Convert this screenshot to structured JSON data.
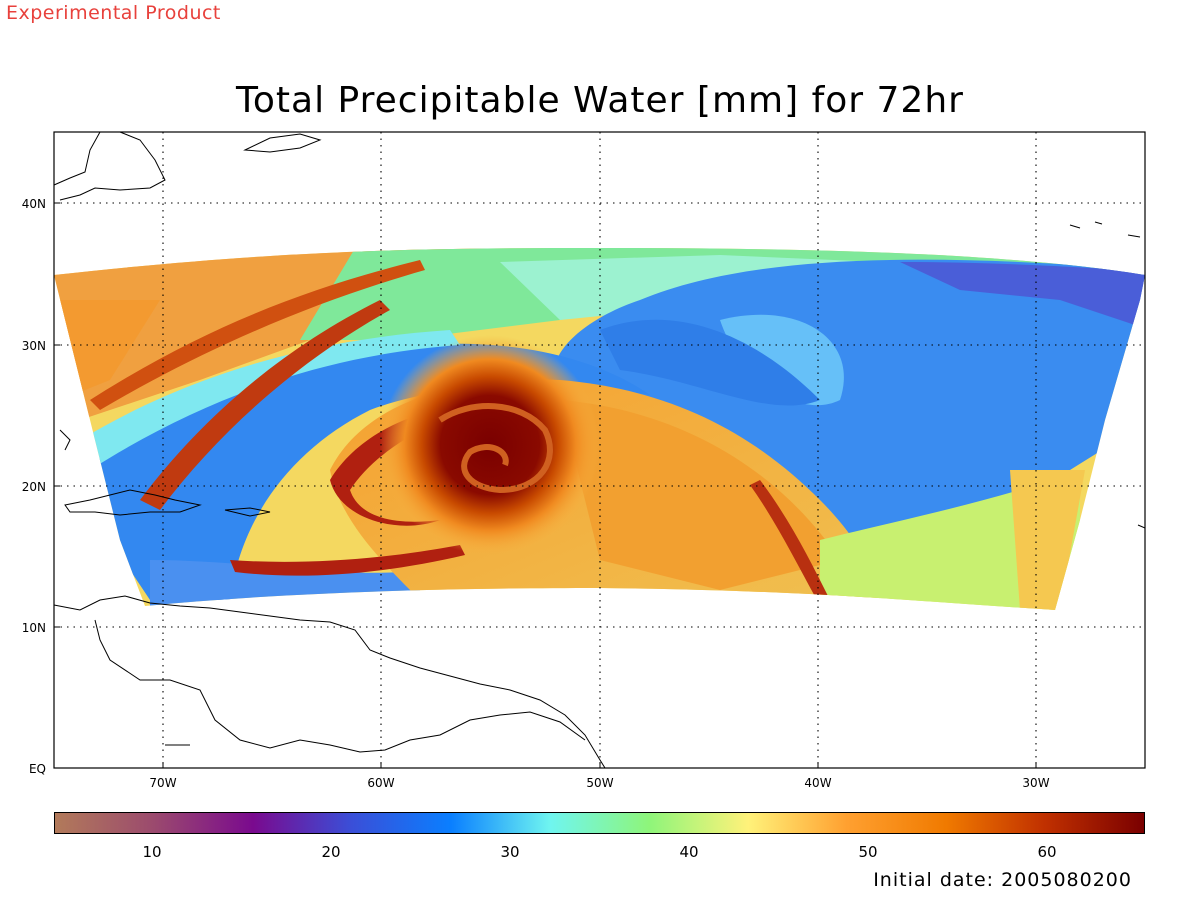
{
  "header": {
    "experimental_label": "Experimental Product",
    "title": "Total Precipitable Water [mm] for 72hr"
  },
  "map": {
    "lon_ticks": [
      "70W",
      "60W",
      "50W",
      "40W",
      "30W"
    ],
    "lat_ticks": [
      "EQ",
      "10N",
      "20N",
      "30N",
      "40N"
    ],
    "grid": "dotted",
    "colors": {
      "land_outline": "#000000",
      "background": "#ffffff"
    }
  },
  "colorbar": {
    "labels": [
      "10",
      "20",
      "30",
      "40",
      "50",
      "60"
    ],
    "stops": [
      "#b27a5a",
      "#9b4a6e",
      "#7a0a8e",
      "#3a4fd8",
      "#0a7fff",
      "#6ff5f0",
      "#8ef57a",
      "#fff27a",
      "#ffa030",
      "#f07a00",
      "#c03000",
      "#7a0000"
    ]
  },
  "footer": {
    "initial_date": "Initial date: 2005080200"
  }
}
